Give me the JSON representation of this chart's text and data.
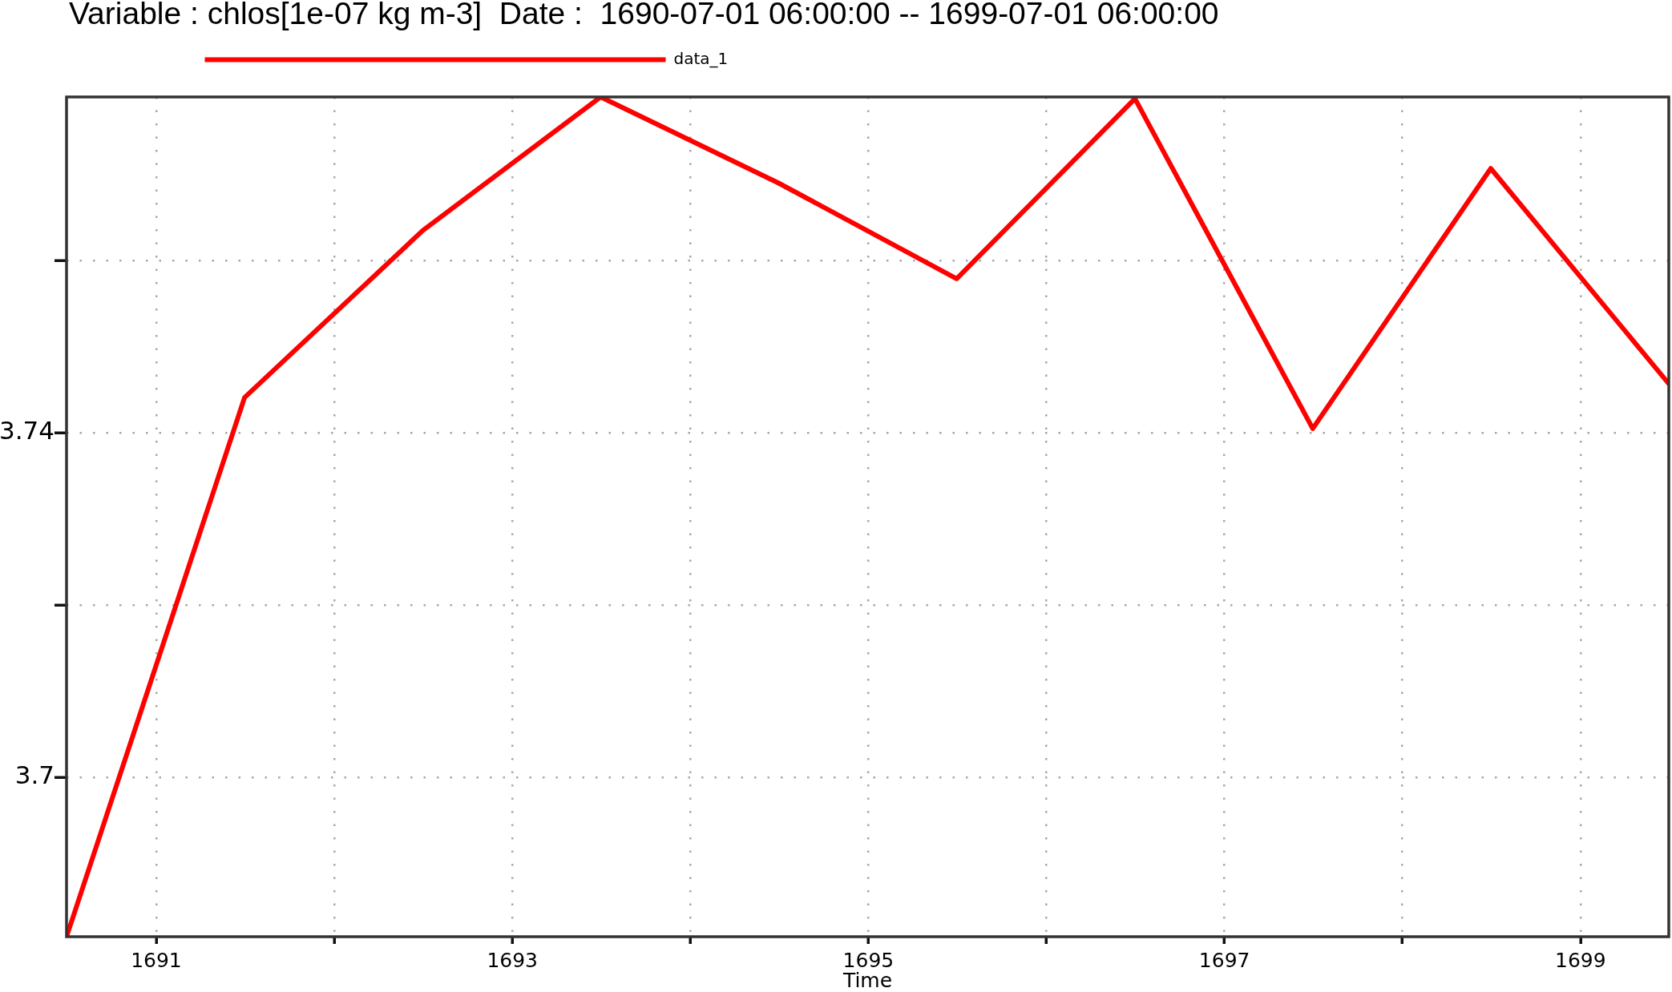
{
  "chart_data": {
    "type": "line",
    "title": "Variable : chlos[1e-07 kg m-3]  Date :  1690-07-01 06:00:00 -- 1699-07-01 06:00:00",
    "xlabel": "Time",
    "x": [
      "1690-07-01",
      "1691-07-01",
      "1692-07-01",
      "1693-07-01",
      "1694-07-01",
      "1695-07-01",
      "1696-07-01",
      "1697-07-01",
      "1698-07-01",
      "1699-07-01"
    ],
    "series": [
      {
        "name": "data_1",
        "color": "#ff0000",
        "values": [
          3.6815,
          3.7441,
          3.7635,
          3.779,
          3.769,
          3.7579,
          3.7788,
          3.7405,
          3.7707,
          3.7457
        ]
      }
    ],
    "xlim": [
      "1690-07-01",
      "1699-07-01"
    ],
    "ylim": [
      3.6815,
      3.779
    ],
    "xticks": [
      "1691",
      {
        "value": "1692",
        "label": null
      },
      "1693",
      {
        "value": "1694",
        "label": null
      },
      "1695",
      {
        "value": "1696",
        "label": null
      },
      "1697",
      {
        "value": "1698",
        "label": null
      },
      "1699"
    ],
    "yticks": [
      3.7,
      {
        "value": 3.72,
        "label": null
      },
      3.74,
      {
        "value": 3.76,
        "label": null
      }
    ],
    "grid": true,
    "legend": "top left",
    "marker": "none",
    "line_style": "solid"
  }
}
